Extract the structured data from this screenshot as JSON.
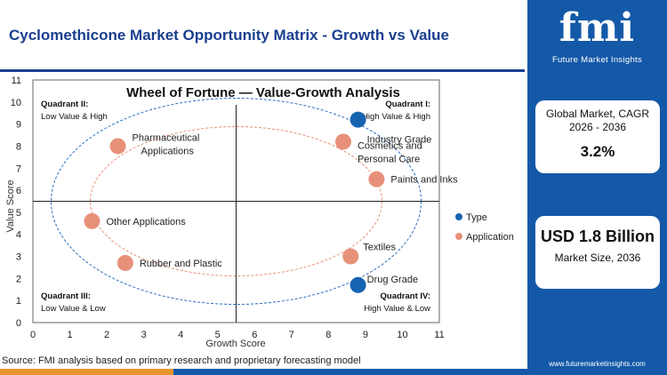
{
  "header": {
    "title": "Cyclomethicone Market Opportunity Matrix - Growth vs Value"
  },
  "brand": {
    "logo": "fmi",
    "tagline": "Future Market Insights",
    "website": "www.futuremarketinsights.com"
  },
  "stats": {
    "cagr_label": "Global Market, CAGR 2026 - 2036",
    "cagr_value": "3.2%",
    "size_value": "USD 1.8 Billion",
    "size_label": "Market Size, 2036"
  },
  "footer": {
    "source": "Source: FMI analysis based on primary research and proprietary forecasting model"
  },
  "colors": {
    "brand_blue": "#1459a8",
    "type": "#1763b0",
    "application": "#e8917a",
    "accent_orange": "#e6952e"
  },
  "chart_data": {
    "type": "scatter",
    "title": "Wheel of Fortune — Value-Growth Analysis",
    "xlabel": "Growth Score",
    "ylabel": "Value Score",
    "xlim": [
      0,
      11
    ],
    "ylim": [
      0,
      11
    ],
    "xticks": [
      0,
      1,
      2,
      3,
      4,
      5,
      6,
      7,
      8,
      9,
      10,
      11
    ],
    "yticks": [
      0,
      1,
      2,
      3,
      4,
      5,
      6,
      7,
      8,
      9,
      10,
      11
    ],
    "grid": false,
    "quadrant_dividers": {
      "x": 5.5,
      "y": 5.5
    },
    "quadrants": [
      {
        "title": "Quadrant II:",
        "subtitle": "Low Value & High",
        "position": "top-left"
      },
      {
        "title": "Quadrant I:",
        "subtitle": "High Value & High",
        "position": "top-right"
      },
      {
        "title": "Quadrant III:",
        "subtitle": "Low Value & Low",
        "position": "bottom-left"
      },
      {
        "title": "Quadrant IV:",
        "subtitle": "High Value & Low",
        "position": "bottom-right"
      }
    ],
    "legend": {
      "position": "right",
      "entries": [
        "Type",
        "Application"
      ]
    },
    "series": [
      {
        "name": "Type",
        "points": [
          {
            "label": "Industry Grade",
            "x": 8.8,
            "y": 9.2
          },
          {
            "label": "Drug Grade",
            "x": 8.8,
            "y": 1.7
          }
        ]
      },
      {
        "name": "Application",
        "points": [
          {
            "label": "Pharmaceutical Applications",
            "x": 2.3,
            "y": 8.0
          },
          {
            "label": "Cosmetics and Personal Care",
            "x": 8.4,
            "y": 8.2
          },
          {
            "label": "Paints and Inks",
            "x": 9.3,
            "y": 6.5
          },
          {
            "label": "Other Applications",
            "x": 1.6,
            "y": 4.6
          },
          {
            "label": "Rubber and Plastic",
            "x": 2.5,
            "y": 2.7
          },
          {
            "label": "Textiles",
            "x": 8.6,
            "y": 3.0
          }
        ]
      }
    ]
  }
}
